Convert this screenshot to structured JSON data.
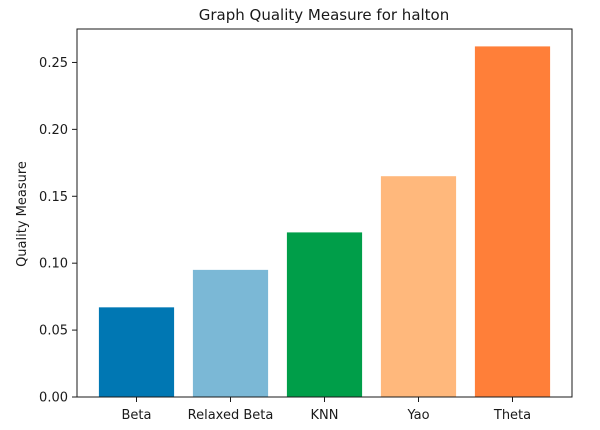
{
  "chart_data": {
    "type": "bar",
    "title": "Graph Quality Measure for halton",
    "xlabel": "",
    "ylabel": "Quality Measure",
    "categories": [
      "Beta",
      "Relaxed Beta",
      "KNN",
      "Yao",
      "Theta"
    ],
    "values": [
      0.067,
      0.095,
      0.123,
      0.165,
      0.262
    ],
    "colors": [
      "#0077b3",
      "#7bb8d6",
      "#009e49",
      "#ffb87c",
      "#ff7f39"
    ],
    "ylim": [
      0,
      0.275
    ],
    "yticks": [
      0.0,
      0.05,
      0.1,
      0.15,
      0.2,
      0.25
    ],
    "ytick_labels": [
      "0.00",
      "0.05",
      "0.10",
      "0.15",
      "0.20",
      "0.25"
    ],
    "grid": false,
    "legend": "none"
  }
}
